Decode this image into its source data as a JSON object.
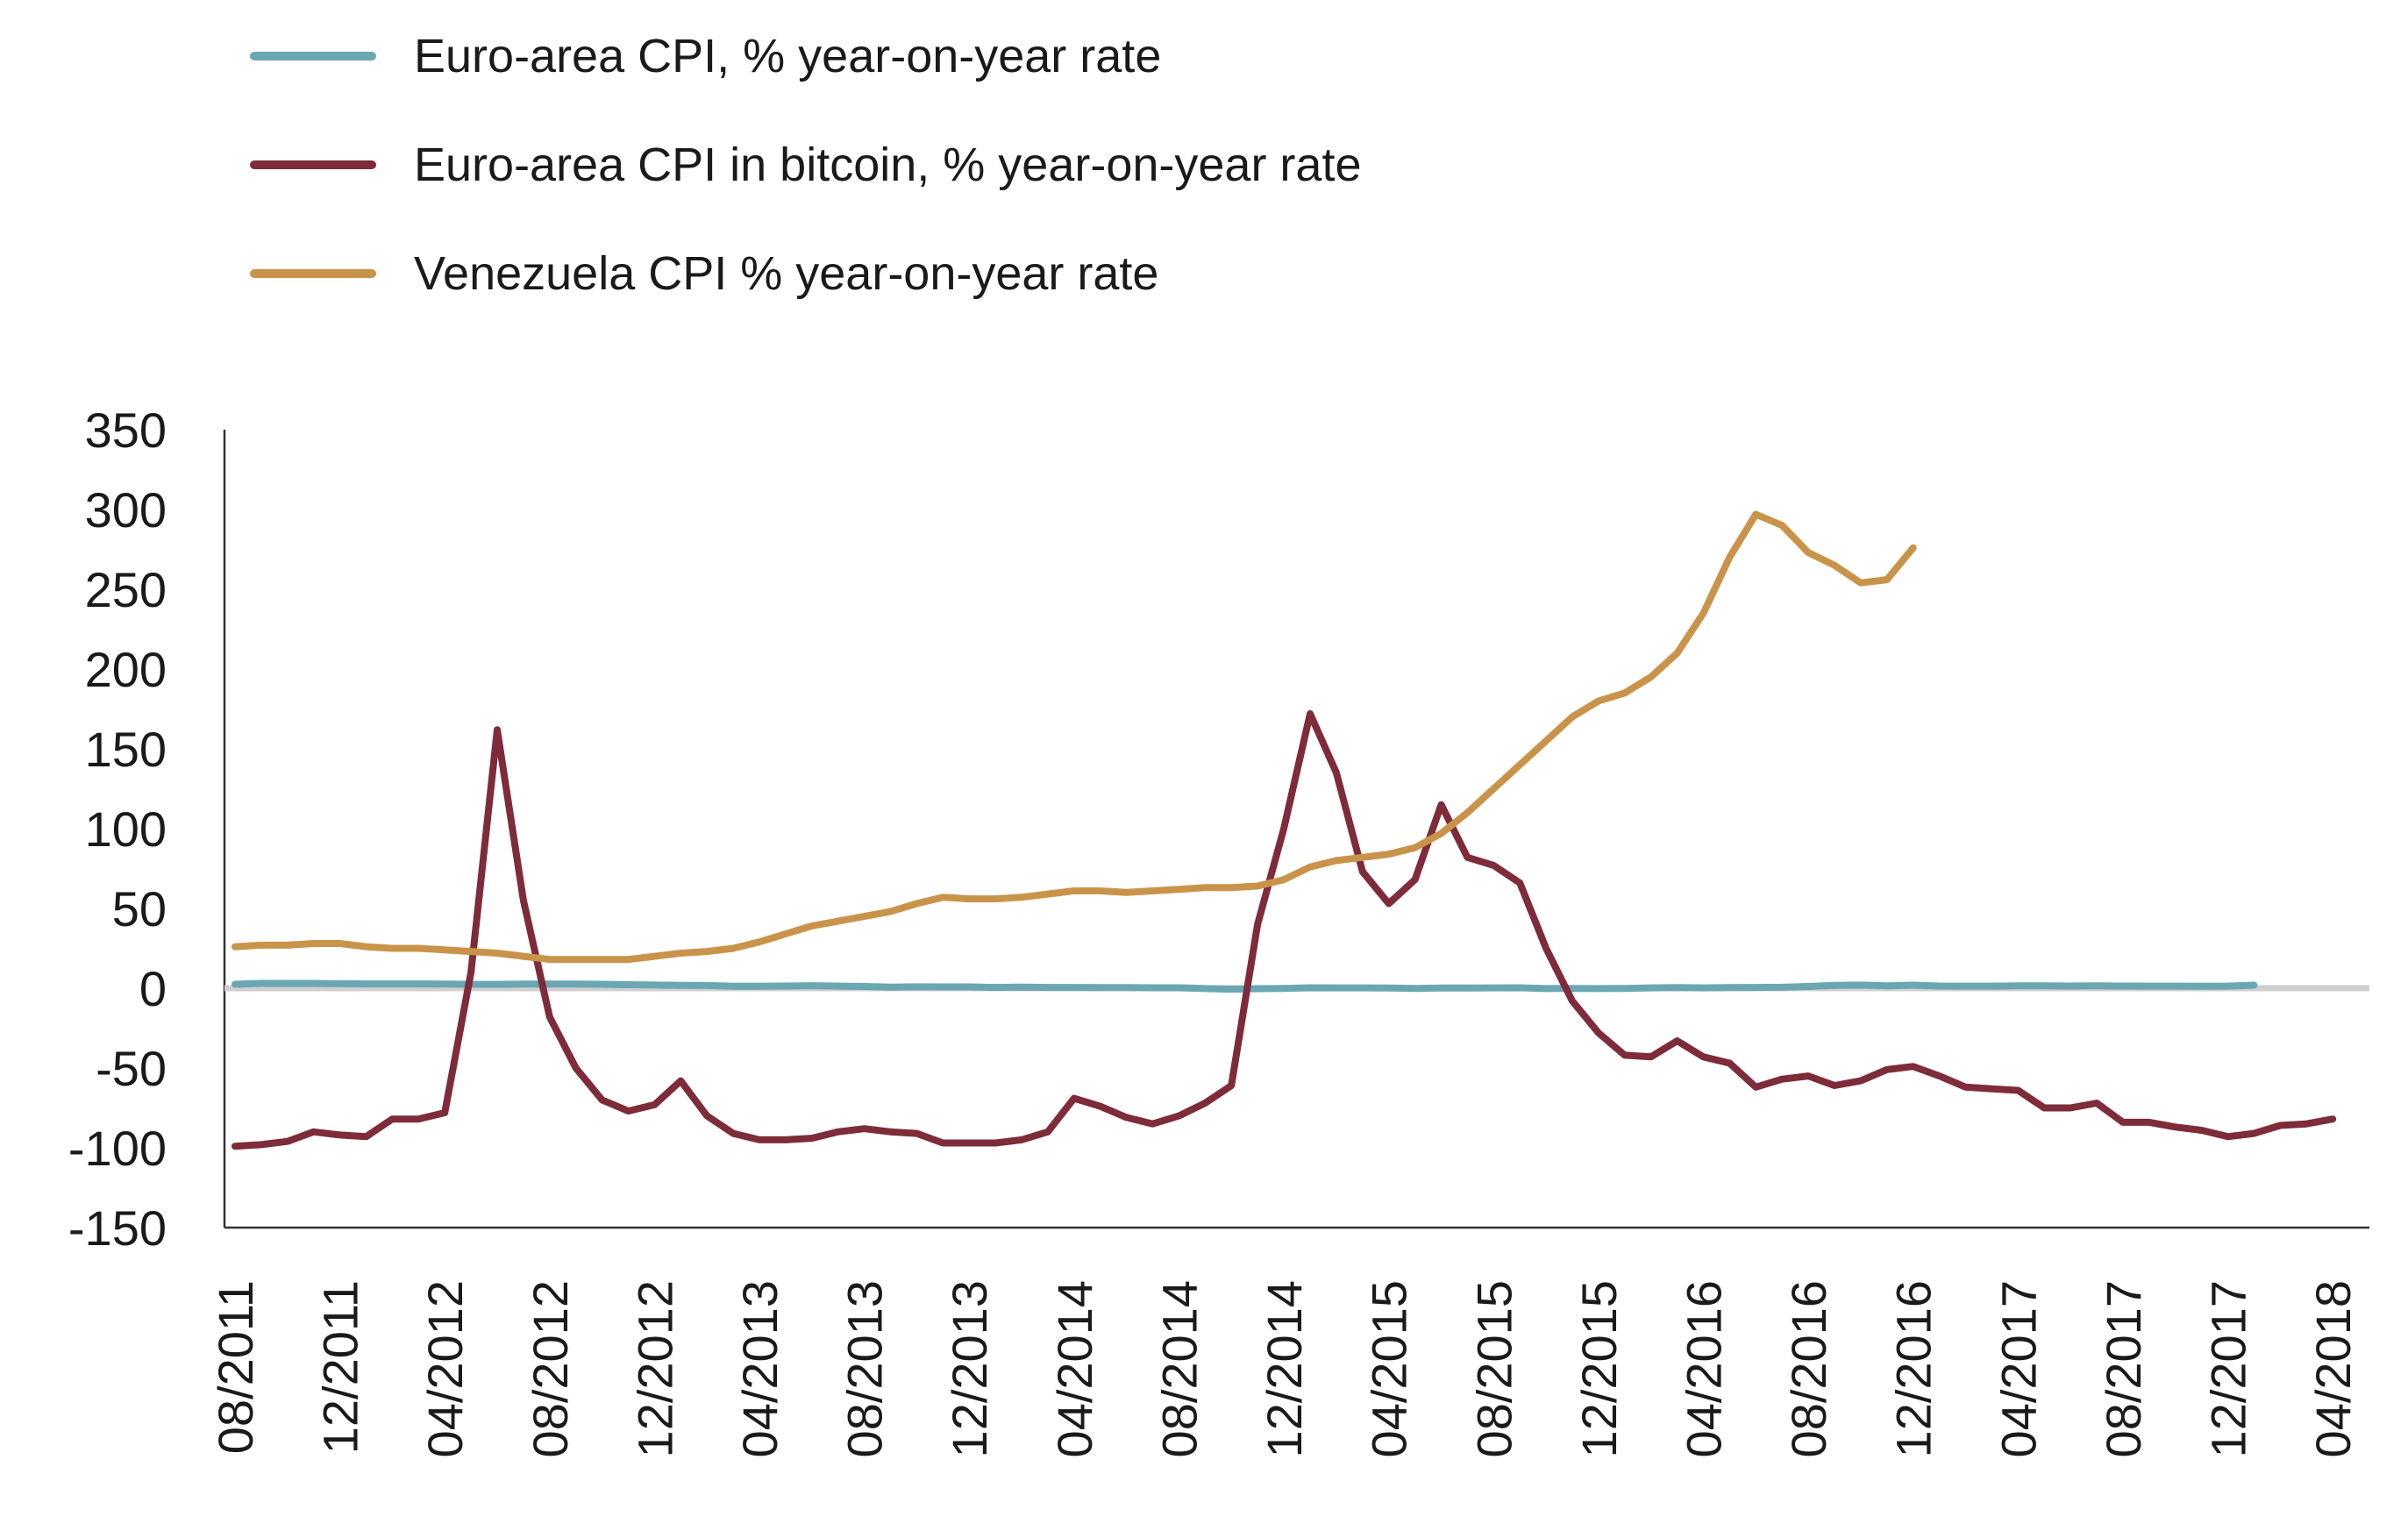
{
  "chart_data": {
    "type": "line",
    "title": "",
    "xlabel": "",
    "ylabel": "",
    "ylim": [
      -150,
      350
    ],
    "yticks": [
      350,
      300,
      250,
      200,
      150,
      100,
      50,
      0,
      -50,
      -100,
      -150
    ],
    "xtick_labels": [
      "08/2011",
      "12/2011",
      "04/2012",
      "08/2012",
      "12/2012",
      "04/2013",
      "08/2013",
      "12/2013",
      "04/2014",
      "08/2014",
      "12/2014",
      "04/2015",
      "08/2015",
      "12/2015",
      "04/2016",
      "08/2016",
      "12/2016",
      "04/2017",
      "08/2017",
      "12/2017",
      "04/2018"
    ],
    "x_start": "08/2011",
    "x_end": "05/2018",
    "grid": false,
    "legend_position": "top-left",
    "series": [
      {
        "name": "Euro-area CPI, % year-on-year rate",
        "color": "#6aa7b3",
        "values": [
          2.5,
          3.0,
          3.0,
          3.0,
          2.8,
          2.7,
          2.7,
          2.7,
          2.6,
          2.4,
          2.4,
          2.6,
          2.6,
          2.6,
          2.5,
          2.2,
          2.0,
          1.8,
          1.7,
          1.2,
          1.2,
          1.4,
          1.6,
          1.3,
          1.1,
          0.7,
          0.9,
          0.8,
          0.8,
          0.5,
          0.7,
          0.5,
          0.5,
          0.4,
          0.4,
          0.3,
          0.3,
          -0.2,
          -0.6,
          -0.3,
          -0.1,
          0.3,
          0.2,
          0.2,
          0.1,
          -0.1,
          0.1,
          0.1,
          0.2,
          0.3,
          -0.2,
          -0.1,
          -0.2,
          -0.1,
          0.2,
          0.4,
          0.2,
          0.4,
          0.5,
          0.6,
          1.1,
          1.8,
          2.0,
          1.5,
          1.9,
          1.4,
          1.3,
          1.3,
          1.5,
          1.5,
          1.4,
          1.5,
          1.4,
          1.3,
          1.3,
          1.2,
          1.3,
          1.9
        ],
        "start_index": 0
      },
      {
        "name": "Euro-area CPI in bitcoin, % year-on-year rate",
        "color": "#7e2b3a",
        "values": [
          -99,
          -98,
          -96,
          -90,
          -92,
          -93,
          -82,
          -82,
          -78,
          10,
          162,
          55,
          -18,
          -50,
          -70,
          -77,
          -73,
          -58,
          -80,
          -91,
          -95,
          -95,
          -94,
          -90,
          -88,
          -90,
          -91,
          -97,
          -97,
          -97,
          -95,
          -90,
          -69,
          -74,
          -81,
          -85,
          -80,
          -72,
          -61,
          40,
          100,
          172,
          135,
          73,
          53,
          68,
          115,
          82,
          77,
          66,
          25,
          -8,
          -28,
          -42,
          -43,
          -33,
          -43,
          -47,
          -62,
          -57,
          -55,
          -61,
          -58,
          -51,
          -49,
          -55,
          -62,
          -63,
          -64,
          -75,
          -75,
          -72,
          -84,
          -84,
          -87,
          -89,
          -93,
          -91,
          -86,
          -85,
          -82
        ],
        "start_index": 0
      },
      {
        "name": "Venezuela CPI % year-on-year rate",
        "color": "#c9944a",
        "values": [
          26,
          27,
          27,
          28,
          28,
          26,
          25,
          25,
          24,
          23,
          22,
          20,
          18,
          18,
          18,
          18,
          20,
          22,
          23,
          25,
          29,
          34,
          39,
          42,
          45,
          48,
          53,
          57,
          56,
          56,
          57,
          59,
          61,
          61,
          60,
          61,
          62,
          63,
          63,
          64,
          68,
          76,
          80,
          82,
          84,
          88,
          97,
          110,
          125,
          140,
          155,
          170,
          180,
          185,
          195,
          210,
          235,
          270,
          297,
          290,
          273,
          265,
          254,
          256,
          276
        ],
        "start_index": 0
      }
    ]
  },
  "zero_line_color": "#cfcfcf"
}
